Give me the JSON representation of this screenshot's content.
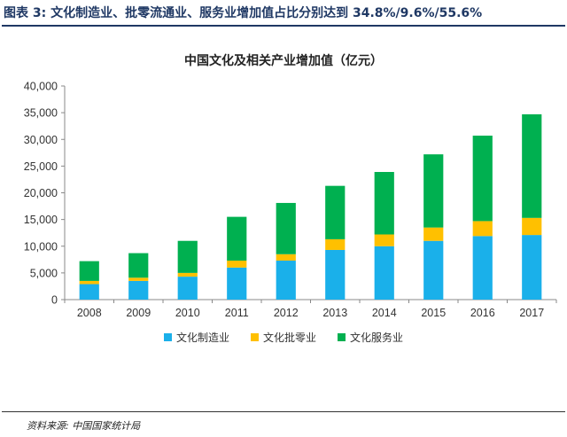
{
  "figure_title": "图表 3:  文化制造业、批零流通业、服务业增加值占比分别达到 34.8%/9.6%/55.6%",
  "source": "资料来源:  中国国家统计局",
  "chart_data": {
    "type": "bar",
    "stacked": true,
    "title": "中国文化及相关产业增加值（亿元）",
    "xlabel": "",
    "ylabel": "",
    "categories": [
      "2008",
      "2009",
      "2010",
      "2011",
      "2012",
      "2013",
      "2014",
      "2015",
      "2016",
      "2017"
    ],
    "ylim": [
      0,
      40000
    ],
    "yticks": [
      "0",
      "5,000",
      "10,000",
      "15,000",
      "20,000",
      "25,000",
      "30,000",
      "35,000",
      "40,000"
    ],
    "series": [
      {
        "name": "文化制造业",
        "color": "#1ab0ea",
        "values": [
          2900,
          3500,
          4300,
          6000,
          7300,
          9300,
          10000,
          11000,
          11900,
          12100
        ]
      },
      {
        "name": "文化批零业",
        "color": "#ffc000",
        "values": [
          600,
          600,
          700,
          1300,
          1200,
          2000,
          2200,
          2500,
          2800,
          3200
        ]
      },
      {
        "name": "文化服务业",
        "color": "#00b050",
        "values": [
          3700,
          4600,
          6000,
          8200,
          9600,
          10000,
          11700,
          13700,
          16000,
          19400
        ]
      }
    ],
    "grid": false,
    "legend_position": "bottom"
  }
}
